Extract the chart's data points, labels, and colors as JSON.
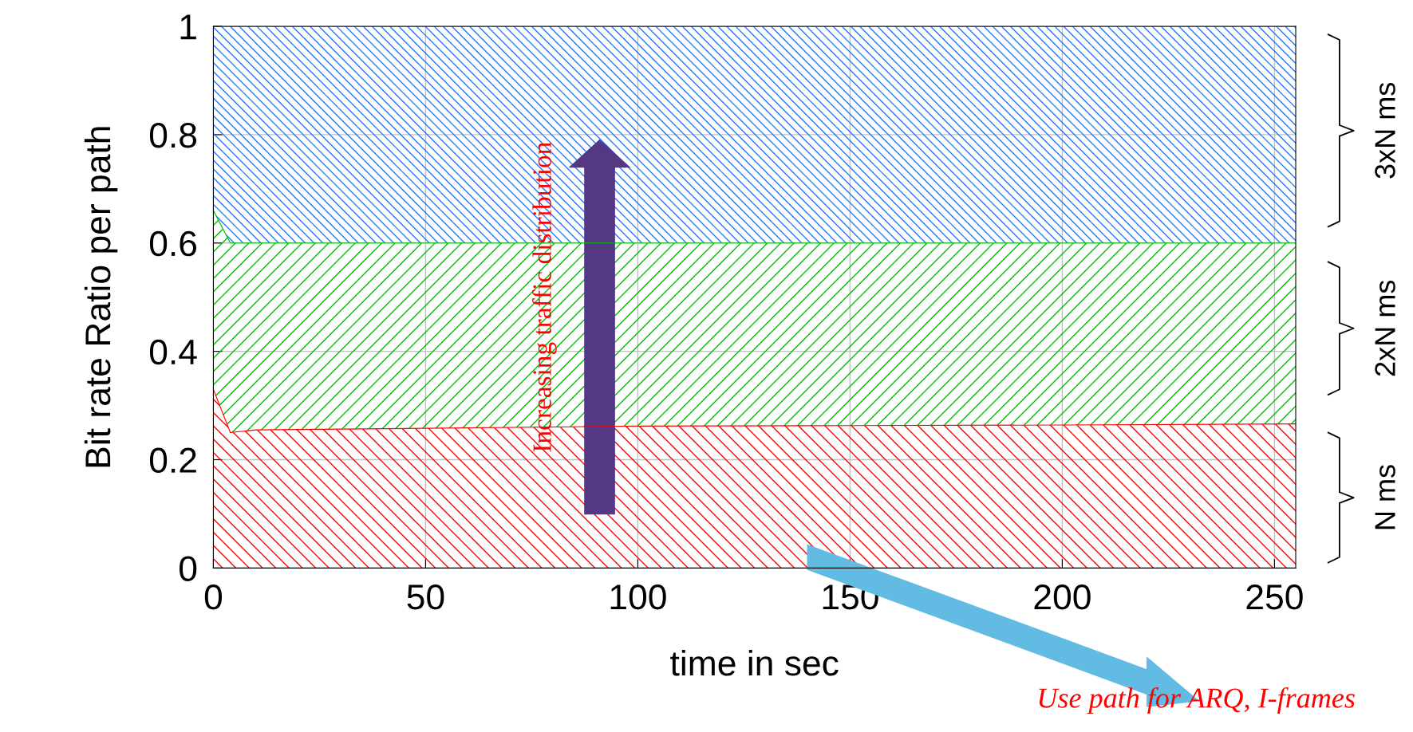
{
  "chart_data": {
    "type": "area",
    "stacked": true,
    "xlabel": "time in sec",
    "ylabel": "Bit rate Ratio per path",
    "x": [
      0,
      4,
      10,
      50,
      100,
      150,
      200,
      255
    ],
    "series": [
      {
        "color": "#ff0000",
        "values": [
          0.33,
          0.25,
          0.255,
          0.258,
          0.262,
          0.263,
          0.264,
          0.266
        ]
      },
      {
        "color": "#00c000",
        "values": [
          0.33,
          0.35,
          0.345,
          0.342,
          0.338,
          0.337,
          0.336,
          0.334
        ]
      },
      {
        "color": "#1e78ff",
        "values": [
          0.34,
          0.4,
          0.4,
          0.4,
          0.4,
          0.4,
          0.4,
          0.4
        ]
      }
    ],
    "xlim": [
      0,
      255
    ],
    "xticks": [
      0,
      50,
      100,
      150,
      200,
      250
    ],
    "ylim": [
      0,
      1
    ],
    "yticks": [
      0,
      0.2,
      0.4,
      0.6,
      0.8,
      1
    ],
    "grid": true,
    "annotations": [
      "N ms",
      "2xN ms",
      "3xN ms",
      "Increasing traffic distribution",
      "Use path for ARQ, I-frames"
    ]
  }
}
